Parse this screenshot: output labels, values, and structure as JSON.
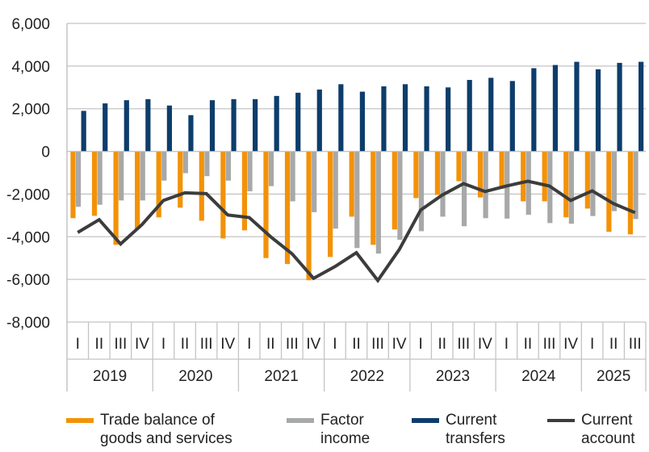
{
  "chart_data": {
    "type": "bar",
    "title": "",
    "xlabel": "",
    "ylabel": "",
    "ylim": [
      -8000,
      6000
    ],
    "yticks": [
      6000,
      4000,
      2000,
      0,
      -2000,
      -4000,
      -6000,
      -8000
    ],
    "ytick_labels": [
      "6,000",
      "4,000",
      "2,000",
      "0",
      "-2,000",
      "-4,000",
      "-6,000",
      "-8,000"
    ],
    "grid": "horizontal",
    "legend_position": "bottom",
    "years": [
      {
        "label": "2019",
        "quarters": [
          "I",
          "II",
          "III",
          "IV"
        ]
      },
      {
        "label": "2020",
        "quarters": [
          "I",
          "II",
          "III",
          "IV"
        ]
      },
      {
        "label": "2021",
        "quarters": [
          "I",
          "II",
          "III",
          "IV"
        ]
      },
      {
        "label": "2022",
        "quarters": [
          "I",
          "II",
          "III",
          "IV"
        ]
      },
      {
        "label": "2023",
        "quarters": [
          "I",
          "II",
          "III",
          "IV"
        ]
      },
      {
        "label": "2024",
        "quarters": [
          "I",
          "II",
          "III",
          "IV"
        ]
      },
      {
        "label": "2025",
        "quarters": [
          "I",
          "II",
          "III"
        ]
      }
    ],
    "series": [
      {
        "name": "Trade balance of goods and services",
        "name_lines": [
          "Trade balance of",
          "goods and services"
        ],
        "kind": "bar",
        "color": "#F39208",
        "values": [
          -3130,
          -3020,
          -4380,
          -3620,
          -3090,
          -2640,
          -3250,
          -4080,
          -3700,
          -5000,
          -5280,
          -6040,
          -4950,
          -3060,
          -4380,
          -3660,
          -2190,
          -2040,
          -1400,
          -2160,
          -1750,
          -2340,
          -2340,
          -3090,
          -2680,
          -3770,
          -3890
        ]
      },
      {
        "name": "Factor income",
        "name_lines": [
          "Factor",
          "income"
        ],
        "kind": "bar",
        "color": "#A7A8A8",
        "values": [
          -2600,
          -2500,
          -2300,
          -2300,
          -1370,
          -1020,
          -1160,
          -1370,
          -1870,
          -1630,
          -2340,
          -2850,
          -3620,
          -4530,
          -4790,
          -4140,
          -3740,
          -3060,
          -3510,
          -3130,
          -3150,
          -2970,
          -3360,
          -3390,
          -3030,
          -2800,
          -3170
        ]
      },
      {
        "name": "Current transfers",
        "name_lines": [
          "Current",
          "transfers"
        ],
        "kind": "bar",
        "color": "#0D3D6B",
        "values": [
          1900,
          2250,
          2400,
          2450,
          2150,
          1700,
          2400,
          2450,
          2450,
          2600,
          2750,
          2900,
          3150,
          2800,
          3050,
          3150,
          3050,
          3000,
          3350,
          3450,
          3300,
          3900,
          4050,
          4200,
          3850,
          4150,
          4200
        ]
      },
      {
        "name": "Current account",
        "name_lines": [
          "Current",
          "account"
        ],
        "kind": "line",
        "color": "#3C3C3C",
        "values": [
          -3800,
          -3200,
          -4340,
          -3430,
          -2300,
          -1940,
          -1980,
          -2980,
          -3100,
          -4000,
          -4800,
          -5950,
          -5400,
          -4750,
          -6050,
          -4600,
          -2750,
          -2050,
          -1510,
          -1880,
          -1620,
          -1400,
          -1620,
          -2300,
          -1850,
          -2450,
          -2870
        ]
      }
    ]
  }
}
